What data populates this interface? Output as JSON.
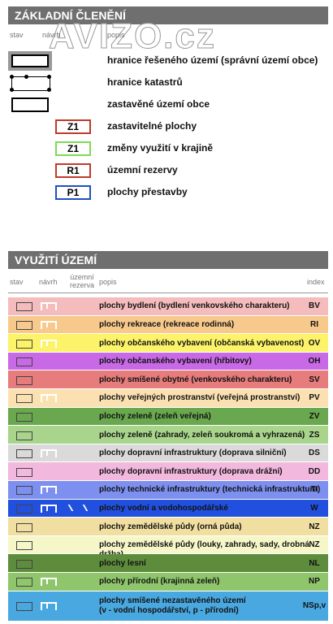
{
  "watermark": "AVIZO.cz",
  "section1": {
    "title": "ZÁKLADNÍ ČLENĚNÍ",
    "columns": [
      "stav",
      "návrh",
      "popis"
    ],
    "items": [
      {
        "symbol": "thick",
        "label": "hranice řešeného území (správní území obce)"
      },
      {
        "symbol": "dots",
        "label": "hranice katastrů"
      },
      {
        "symbol": "plain",
        "label": "zastavěné území obce"
      },
      {
        "code": "Z1",
        "color": "#c0392b",
        "label": "zastavitelné plochy"
      },
      {
        "code": "Z1",
        "color": "#7ed957",
        "label": "změny využití v krajině"
      },
      {
        "code": "R1",
        "color": "#c0392b",
        "label": "územní rezervy"
      },
      {
        "code": "P1",
        "color": "#1f4fc0",
        "label": "plochy přestavby"
      }
    ]
  },
  "section2": {
    "title": "VYUŽITÍ ÚZEMÍ",
    "columns": [
      "stav",
      "návrh",
      "územní rezerva",
      "popis",
      "index"
    ],
    "rows": [
      {
        "lines": [
          "plochy bydlení (bydlení venkovského charakteru)"
        ],
        "index": "BV",
        "color": "#f4bcbc",
        "navrh": true
      },
      {
        "lines": [
          "plochy rekreace (rekreace rodinná)"
        ],
        "index": "RI",
        "color": "#f8c98c",
        "navrh": true
      },
      {
        "lines": [
          "plochy občanského vybavení (občanská vybavenost)"
        ],
        "index": "OV",
        "color": "#fdf36a",
        "navrh": true
      },
      {
        "lines": [
          "plochy občanského vybavení (hřbitovy)"
        ],
        "index": "OH",
        "color": "#c86ae6",
        "navrh": false
      },
      {
        "lines": [
          "plochy smíšené obytné (venkovského charakteru)"
        ],
        "index": "SV",
        "color": "#e67c7c",
        "navrh": false
      },
      {
        "lines": [
          "plochy veřejných prostranství (veřejná prostranství)"
        ],
        "index": "PV",
        "color": "#fbe1b2",
        "navrh": true
      },
      {
        "lines": [
          "plochy zeleně (zeleň veřejná)"
        ],
        "index": "ZV",
        "color": "#6aa84f",
        "navrh": false
      },
      {
        "lines": [
          "plochy zeleně (zahrady, zeleň soukromá a vyhrazená)"
        ],
        "index": "ZS",
        "color": "#a8d48c",
        "navrh": false
      },
      {
        "lines": [
          "plochy dopravní infrastruktury (doprava silniční)"
        ],
        "index": "DS",
        "color": "#dadada",
        "navrh": true
      },
      {
        "lines": [
          "plochy dopravní infrastruktury (doprava drážní)"
        ],
        "index": "DD",
        "color": "#f2b8de",
        "navrh": false
      },
      {
        "lines": [
          "plochy technické infrastruktury (technická infrastruktura)"
        ],
        "index": "TI",
        "color": "#7d90ef",
        "navrh": true
      },
      {
        "lines": [
          "plochy vodní a vodohospodářské"
        ],
        "index": "W",
        "color": "#2150df",
        "navrh": true,
        "rezerva": true
      },
      {
        "lines": [
          "plochy zemědělské půdy (orná půda)"
        ],
        "index": "NZ",
        "color": "#f1dfa2",
        "navrh": false
      },
      {
        "lines": [
          "plochy zemědělské půdy (louky, zahrady, sady, drobná držba)"
        ],
        "index": "NZ",
        "color": "#f6f7c9",
        "navrh": false
      },
      {
        "lines": [
          "plochy lesní"
        ],
        "index": "NL",
        "color": "#5d8c3c",
        "navrh": false
      },
      {
        "lines": [
          "plochy přírodní (krajinná zeleň)"
        ],
        "index": "NP",
        "color": "#8fc66c",
        "navrh": true
      },
      {
        "lines": [
          "plochy smíšené nezastavěného území",
          "(v - vodní hospodářství, p - přírodní)"
        ],
        "index": "NSp,v",
        "color": "#4aa8e0",
        "navrh": true
      }
    ]
  }
}
